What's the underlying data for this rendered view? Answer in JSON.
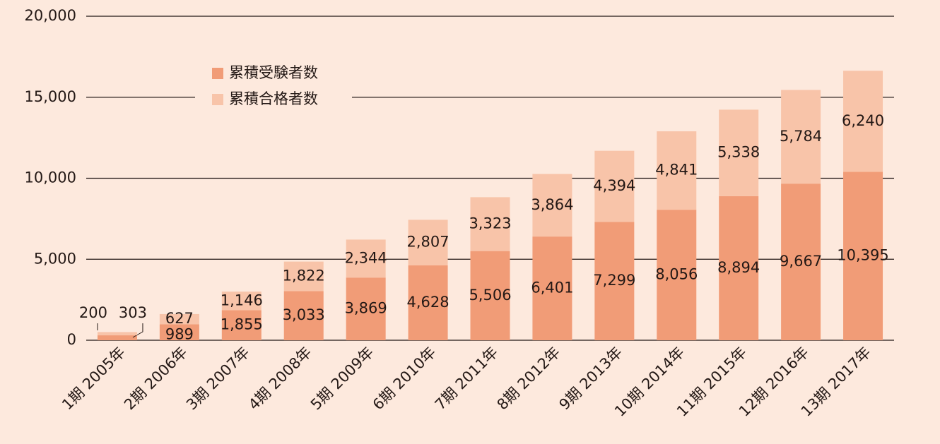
{
  "chart_data": {
    "type": "bar",
    "stacked": true,
    "categories": [
      "1期 2005年",
      "2期 2006年",
      "3期 2007年",
      "4期 2008年",
      "5期 2009年",
      "6期 2010年",
      "7期 2011年",
      "8期 2012年",
      "9期 2013年",
      "10期 2014年",
      "11期 2015年",
      "12期 2016年",
      "13期 2017年"
    ],
    "series": [
      {
        "name": "累積受験者数",
        "color": "#f19c77",
        "values": [
          303,
          989,
          1855,
          3033,
          3869,
          4628,
          5506,
          6401,
          7299,
          8056,
          8894,
          9667,
          10395
        ],
        "value_labels": [
          "303",
          "989",
          "1,855",
          "3,033",
          "3,869",
          "4,628",
          "5,506",
          "6,401",
          "7,299",
          "8,056",
          "8,894",
          "9,667",
          "10,395"
        ]
      },
      {
        "name": "累積合格者数",
        "color": "#f8c4a9",
        "values": [
          200,
          627,
          1146,
          1822,
          2344,
          2807,
          3323,
          3864,
          4394,
          4841,
          5338,
          5784,
          6240
        ],
        "value_labels": [
          "200",
          "627",
          "1,146",
          "1,822",
          "2,344",
          "2,807",
          "3,323",
          "3,864",
          "4,394",
          "4,841",
          "5,338",
          "5,784",
          "6,240"
        ]
      }
    ],
    "ylim": [
      0,
      20000
    ],
    "yticks": [
      0,
      {
        "value": 5000,
        "label": "5,000"
      },
      {
        "value": 10000,
        "label": "10,000"
      },
      {
        "value": 15000,
        "label": "15,000"
      },
      {
        "value": 20000,
        "label": "20,000"
      }
    ],
    "grid": true,
    "legend": "upper left"
  }
}
